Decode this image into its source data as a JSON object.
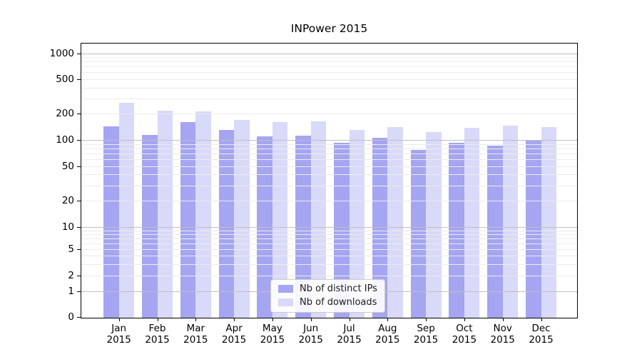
{
  "title": "INPower 2015",
  "legend": {
    "items": [
      {
        "label": "Nb of distinct IPs",
        "color": "#a5a5f2"
      },
      {
        "label": "Nb of downloads",
        "color": "#d9d9f9"
      }
    ]
  },
  "chart_data": {
    "type": "bar",
    "title": "INPower 2015",
    "categories": [
      "Jan 2015",
      "Feb 2015",
      "Mar 2015",
      "Apr 2015",
      "May 2015",
      "Jun 2015",
      "Jul 2015",
      "Aug 2015",
      "Sep 2015",
      "Oct 2015",
      "Nov 2015",
      "Dec 2015"
    ],
    "series": [
      {
        "name": "Nb of distinct IPs",
        "color": "#a5a5f2",
        "values": [
          143,
          114,
          160,
          130,
          110,
          111,
          93,
          106,
          77,
          93,
          86,
          99
        ]
      },
      {
        "name": "Nb of downloads",
        "color": "#d9d9f9",
        "values": [
          270,
          218,
          213,
          170,
          160,
          165,
          130,
          141,
          123,
          137,
          145,
          141
        ]
      }
    ],
    "xlabel": "",
    "ylabel": "",
    "yscale": "symlog",
    "ylim": [
      0,
      1300
    ],
    "yticks": [
      0,
      1,
      2,
      5,
      10,
      20,
      50,
      100,
      200,
      500,
      1000
    ],
    "grid": true,
    "legend_position": "lower center"
  }
}
